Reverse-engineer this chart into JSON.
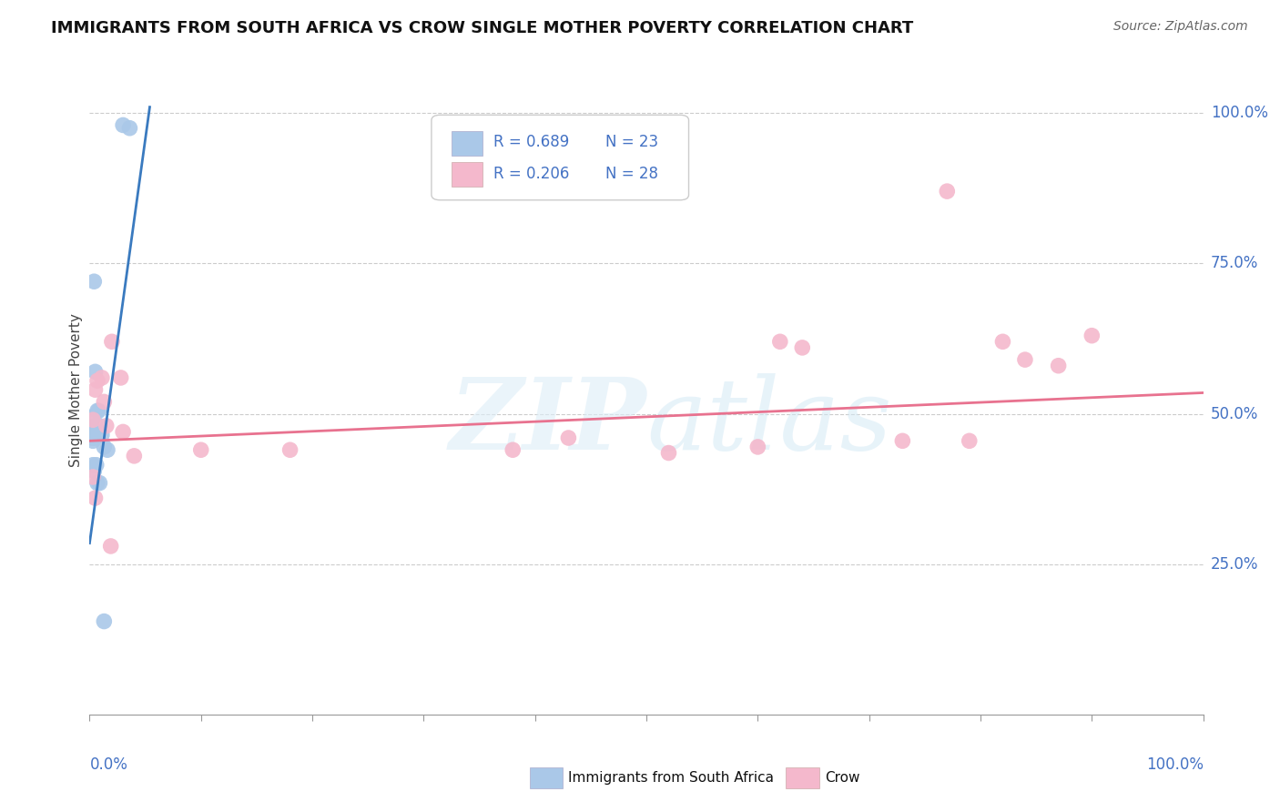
{
  "title": "IMMIGRANTS FROM SOUTH AFRICA VS CROW SINGLE MOTHER POVERTY CORRELATION CHART",
  "source": "Source: ZipAtlas.com",
  "ylabel": "Single Mother Poverty",
  "watermark": "ZIPatlas",
  "legend_r1": "R = 0.689",
  "legend_n1": "N = 23",
  "legend_r2": "R = 0.206",
  "legend_n2": "N = 28",
  "blue_color": "#aac8e8",
  "pink_color": "#f4b8cc",
  "blue_line_color": "#3a7abf",
  "pink_line_color": "#e8728f",
  "text_color": "#4472c4",
  "blue_scatter_x": [
    0.03,
    0.036,
    0.004,
    0.005,
    0.002,
    0.002,
    0.003,
    0.003,
    0.004,
    0.005,
    0.006,
    0.007,
    0.008,
    0.009,
    0.011,
    0.003,
    0.004,
    0.006,
    0.013,
    0.016,
    0.007,
    0.009,
    0.013
  ],
  "blue_scatter_y": [
    0.98,
    0.975,
    0.72,
    0.57,
    0.465,
    0.46,
    0.495,
    0.455,
    0.46,
    0.48,
    0.475,
    0.505,
    0.505,
    0.48,
    0.465,
    0.415,
    0.405,
    0.415,
    0.445,
    0.44,
    0.385,
    0.385,
    0.155
  ],
  "pink_scatter_x": [
    0.02,
    0.028,
    0.1,
    0.18,
    0.03,
    0.04,
    0.62,
    0.64,
    0.77,
    0.82,
    0.84,
    0.87,
    0.9,
    0.003,
    0.005,
    0.007,
    0.011,
    0.013,
    0.015,
    0.38,
    0.43,
    0.52,
    0.6,
    0.73,
    0.79,
    0.003,
    0.005,
    0.019
  ],
  "pink_scatter_y": [
    0.62,
    0.56,
    0.44,
    0.44,
    0.47,
    0.43,
    0.62,
    0.61,
    0.87,
    0.62,
    0.59,
    0.58,
    0.63,
    0.49,
    0.54,
    0.555,
    0.56,
    0.52,
    0.48,
    0.44,
    0.46,
    0.435,
    0.445,
    0.455,
    0.455,
    0.395,
    0.36,
    0.28
  ],
  "xlim": [
    0.0,
    1.0
  ],
  "ylim": [
    0.0,
    1.08
  ],
  "blue_trend_x": [
    0.0,
    0.054
  ],
  "blue_trend_y": [
    0.285,
    1.01
  ],
  "pink_trend_x": [
    0.0,
    1.0
  ],
  "pink_trend_y": [
    0.455,
    0.535
  ],
  "yticks": [
    0.25,
    0.5,
    0.75,
    1.0
  ],
  "ytick_labels": [
    "25.0%",
    "50.0%",
    "75.0%",
    "100.0%"
  ],
  "xtick_positions": [
    0.0,
    0.1,
    0.2,
    0.3,
    0.4,
    0.5,
    0.6,
    0.7,
    0.8,
    0.9,
    1.0
  ],
  "background_color": "#ffffff"
}
